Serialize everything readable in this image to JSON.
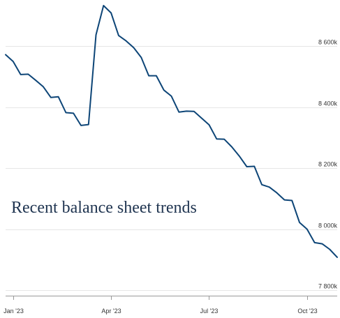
{
  "chart_data": {
    "type": "line",
    "title": "Recent balance sheet trends",
    "xlabel": "",
    "ylabel": "",
    "ylim": [
      7782,
      8733
    ],
    "yticks": [
      7800,
      8000,
      8200,
      8400,
      8600
    ],
    "ytick_labels": [
      "7 800k",
      "8 000k",
      "8 200k",
      "8 400k",
      "8 600k"
    ],
    "xticks": [
      "2023-01-04",
      "2023-04-05",
      "2023-07-05",
      "2023-10-04"
    ],
    "xtick_labels": [
      "Jan '23",
      "Apr '23",
      "Jul '23",
      "Oct '23"
    ],
    "grid": true,
    "legend": "none",
    "line_color": "#0d4577",
    "series": [
      {
        "x": [
          "2022-12-28",
          "2023-01-04",
          "2023-01-11",
          "2023-01-18",
          "2023-01-25",
          "2023-02-01",
          "2023-02-08",
          "2023-02-15",
          "2023-02-22",
          "2023-03-01",
          "2023-03-08",
          "2023-03-15",
          "2023-03-22",
          "2023-03-29",
          "2023-04-05",
          "2023-04-12",
          "2023-04-19",
          "2023-04-26",
          "2023-05-03",
          "2023-05-10",
          "2023-05-17",
          "2023-05-24",
          "2023-05-31",
          "2023-06-07",
          "2023-06-14",
          "2023-06-21",
          "2023-06-28",
          "2023-07-05",
          "2023-07-12",
          "2023-07-19",
          "2023-07-26",
          "2023-08-02",
          "2023-08-09",
          "2023-08-16",
          "2023-08-23",
          "2023-08-30",
          "2023-09-06",
          "2023-09-13",
          "2023-09-20",
          "2023-09-27",
          "2023-10-04",
          "2023-10-11",
          "2023-10-18",
          "2023-10-25",
          "2023-11-01"
        ],
        "values": [
          8572,
          8550,
          8507,
          8508,
          8488,
          8467,
          8432,
          8434,
          8382,
          8380,
          8340,
          8343,
          8637,
          8733,
          8709,
          8635,
          8617,
          8595,
          8563,
          8503,
          8503,
          8456,
          8436,
          8384,
          8387,
          8386,
          8364,
          8342,
          8296,
          8295,
          8270,
          8240,
          8205,
          8206,
          8146,
          8138,
          8119,
          8096,
          8094,
          8022,
          8000,
          7956,
          7952,
          7934,
          7908
        ]
      }
    ]
  }
}
